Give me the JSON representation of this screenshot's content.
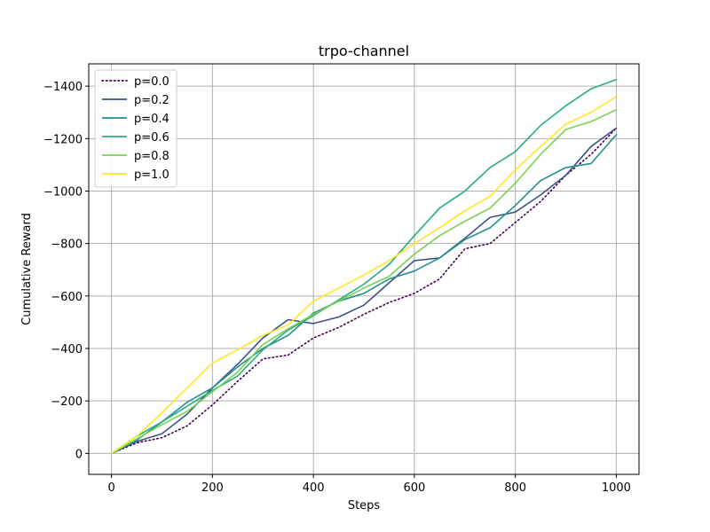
{
  "chart_data": {
    "type": "line",
    "title": "trpo-channel",
    "xlabel": "Steps",
    "ylabel": "Cumulative Reward",
    "xlim": [
      -45,
      1045
    ],
    "ylim": [
      -1485,
      80
    ],
    "y_inverted": true,
    "grid": true,
    "legend_position": "top-left",
    "xticks": [
      0,
      200,
      400,
      600,
      800,
      1000
    ],
    "xtick_labels": [
      "0",
      "200",
      "400",
      "600",
      "800",
      "1000"
    ],
    "yticks": [
      0,
      -200,
      -400,
      -600,
      -800,
      -1000,
      -1200,
      -1400
    ],
    "ytick_labels": [
      "0",
      "−200",
      "−400",
      "−600",
      "−800",
      "−1000",
      "−1200",
      "−1400"
    ],
    "x": [
      0,
      50,
      100,
      150,
      200,
      250,
      300,
      350,
      400,
      450,
      500,
      550,
      600,
      650,
      700,
      750,
      800,
      850,
      900,
      950,
      1000
    ],
    "series": [
      {
        "name": "p=0.0",
        "color": "#440154",
        "dash": "dotted",
        "values": [
          0,
          -40,
          -60,
          -105,
          -185,
          -275,
          -360,
          -375,
          -440,
          -480,
          -530,
          -575,
          -610,
          -665,
          -780,
          -800,
          -880,
          -960,
          -1060,
          -1140,
          -1240
        ]
      },
      {
        "name": "p=0.2",
        "color": "#3b528b",
        "dash": "solid",
        "values": [
          0,
          -45,
          -75,
          -150,
          -250,
          -340,
          -440,
          -510,
          -495,
          -520,
          -565,
          -650,
          -735,
          -745,
          -820,
          -900,
          -920,
          -985,
          -1060,
          -1170,
          -1240
        ]
      },
      {
        "name": "p=0.4",
        "color": "#21918c",
        "dash": "solid",
        "values": [
          0,
          -50,
          -120,
          -195,
          -250,
          -330,
          -400,
          -450,
          -535,
          -580,
          -610,
          -665,
          -695,
          -745,
          -815,
          -860,
          -945,
          -1040,
          -1090,
          -1105,
          -1215
        ]
      },
      {
        "name": "p=0.6",
        "color": "#27ad81",
        "dash": "solid",
        "values": [
          0,
          -65,
          -120,
          -180,
          -240,
          -295,
          -395,
          -470,
          -525,
          -585,
          -645,
          -720,
          -830,
          -935,
          -1000,
          -1090,
          -1150,
          -1250,
          -1325,
          -1390,
          -1425
        ]
      },
      {
        "name": "p=0.8",
        "color": "#7ad151",
        "dash": "solid",
        "values": [
          0,
          -55,
          -110,
          -160,
          -235,
          -310,
          -415,
          -475,
          -530,
          -580,
          -630,
          -675,
          -760,
          -830,
          -885,
          -935,
          -1030,
          -1140,
          -1235,
          -1265,
          -1310
        ]
      },
      {
        "name": "p=1.0",
        "color": "#fde725",
        "dash": "solid",
        "values": [
          0,
          -65,
          -155,
          -250,
          -345,
          -395,
          -450,
          -490,
          -580,
          -630,
          -680,
          -735,
          -800,
          -860,
          -925,
          -980,
          -1080,
          -1170,
          -1255,
          -1300,
          -1360
        ]
      }
    ]
  }
}
